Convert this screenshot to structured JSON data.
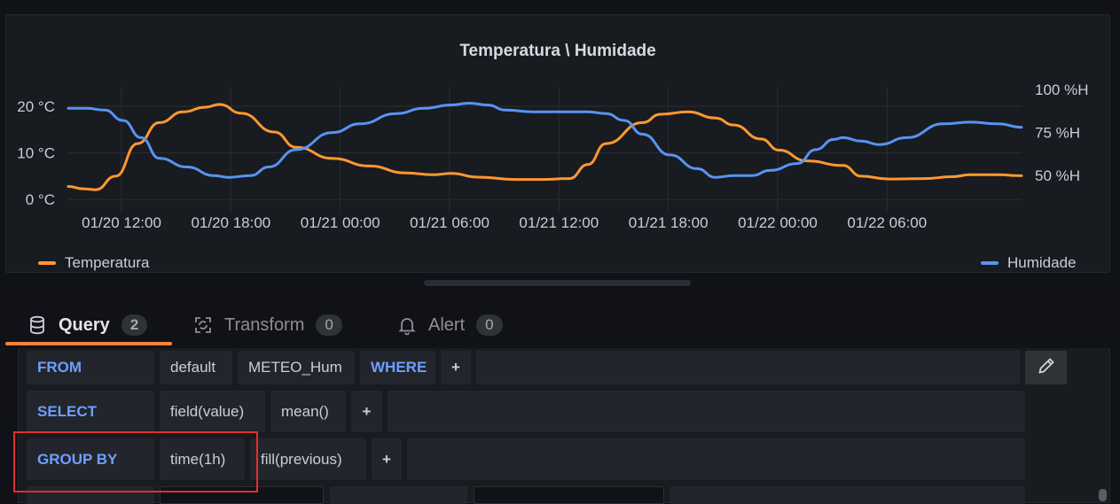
{
  "panel": {
    "title": "Temperatura \\ Humidade",
    "legend": [
      {
        "name": "Temperatura",
        "color": "#ff9830"
      },
      {
        "name": "Humidade",
        "color": "#5794f2"
      }
    ]
  },
  "chart_data": {
    "type": "line",
    "title": "Temperatura \\ Humidade",
    "x_ticks": [
      "01/20 12:00",
      "01/20 18:00",
      "01/21 00:00",
      "01/21 06:00",
      "01/21 12:00",
      "01/21 18:00",
      "01/22 00:00",
      "01/22 06:00"
    ],
    "x_range": [
      "01/20 09:05",
      "01/22 07:00"
    ],
    "y_left": {
      "ticks": [
        "0 °C",
        "10 °C",
        "20 °C"
      ],
      "range": [
        -3,
        24
      ]
    },
    "y_right": {
      "ticks": [
        "50 %H",
        "75 %H",
        "100 %H"
      ],
      "range": [
        28,
        101
      ]
    },
    "grid": true,
    "legend_placement": "bottom",
    "series": [
      {
        "name": "Temperatura",
        "axis": "left",
        "color": "#ff9830",
        "x_hours": [
          0,
          0.8,
          1.5,
          2.6,
          3.8,
          5.0,
          6.3,
          7.5,
          8.3,
          9.5,
          11.3,
          12.5,
          14.5,
          16.5,
          18.5,
          20.0,
          21.0,
          22.5,
          24.5,
          26.0,
          27.5,
          28.5,
          29.5,
          31.5,
          32.5,
          34.0,
          35.5,
          36.5,
          38.0,
          39.0,
          40.5,
          42.5,
          43.5,
          45.0,
          47.0,
          48.5,
          49.5,
          51.0,
          52.3
        ],
        "values": [
          2.8,
          2.3,
          2.1,
          5.0,
          12.0,
          16.5,
          18.8,
          19.8,
          20.4,
          18.5,
          14.5,
          11.2,
          8.8,
          7.2,
          5.7,
          5.3,
          5.6,
          4.8,
          4.3,
          4.3,
          4.5,
          7.5,
          12.0,
          16.5,
          18.3,
          18.8,
          17.5,
          16.0,
          13.0,
          10.6,
          8.3,
          7.3,
          5.0,
          4.4,
          4.5,
          4.9,
          5.3,
          5.3,
          5.1
        ]
      },
      {
        "name": "Humidade",
        "axis": "right",
        "color": "#5794f2",
        "x_hours": [
          0,
          1.0,
          2.0,
          3.0,
          4.0,
          5.0,
          6.5,
          8.0,
          8.8,
          10.0,
          11.0,
          12.5,
          14.5,
          16.0,
          18.0,
          19.5,
          21.0,
          22.0,
          23.0,
          24.0,
          25.5,
          26.5,
          27.5,
          28.5,
          29.5,
          30.5,
          31.5,
          33.0,
          34.5,
          35.5,
          36.5,
          37.5,
          38.5,
          40.0,
          41.0,
          42.0,
          42.5,
          43.5,
          44.5,
          46.0,
          48.0,
          49.5,
          51.0,
          52.3
        ],
        "values": [
          89,
          89,
          88,
          82,
          72,
          60,
          55,
          50,
          49,
          50,
          55,
          65,
          75,
          80,
          86,
          89,
          91,
          92,
          91,
          88,
          87,
          87,
          87,
          87,
          86,
          82,
          74,
          62,
          54,
          49,
          50,
          50,
          53,
          57,
          65,
          71,
          72,
          70,
          68,
          72,
          80,
          81,
          80,
          78
        ]
      }
    ]
  },
  "tabs": [
    {
      "label": "Query",
      "count": "2",
      "active": true
    },
    {
      "label": "Transform",
      "count": "0",
      "active": false
    },
    {
      "label": "Alert",
      "count": "0",
      "active": false
    }
  ],
  "query": {
    "from": {
      "keyword": "FROM",
      "policy": "default",
      "measurement": "METEO_Hum",
      "where": "WHERE",
      "add": "+"
    },
    "select": {
      "keyword": "SELECT",
      "field": "field(value)",
      "fn": "mean()",
      "add": "+"
    },
    "group_by": {
      "keyword": "GROUP BY",
      "time": "time(1h)",
      "fill": "fill(previous)",
      "add": "+"
    }
  }
}
